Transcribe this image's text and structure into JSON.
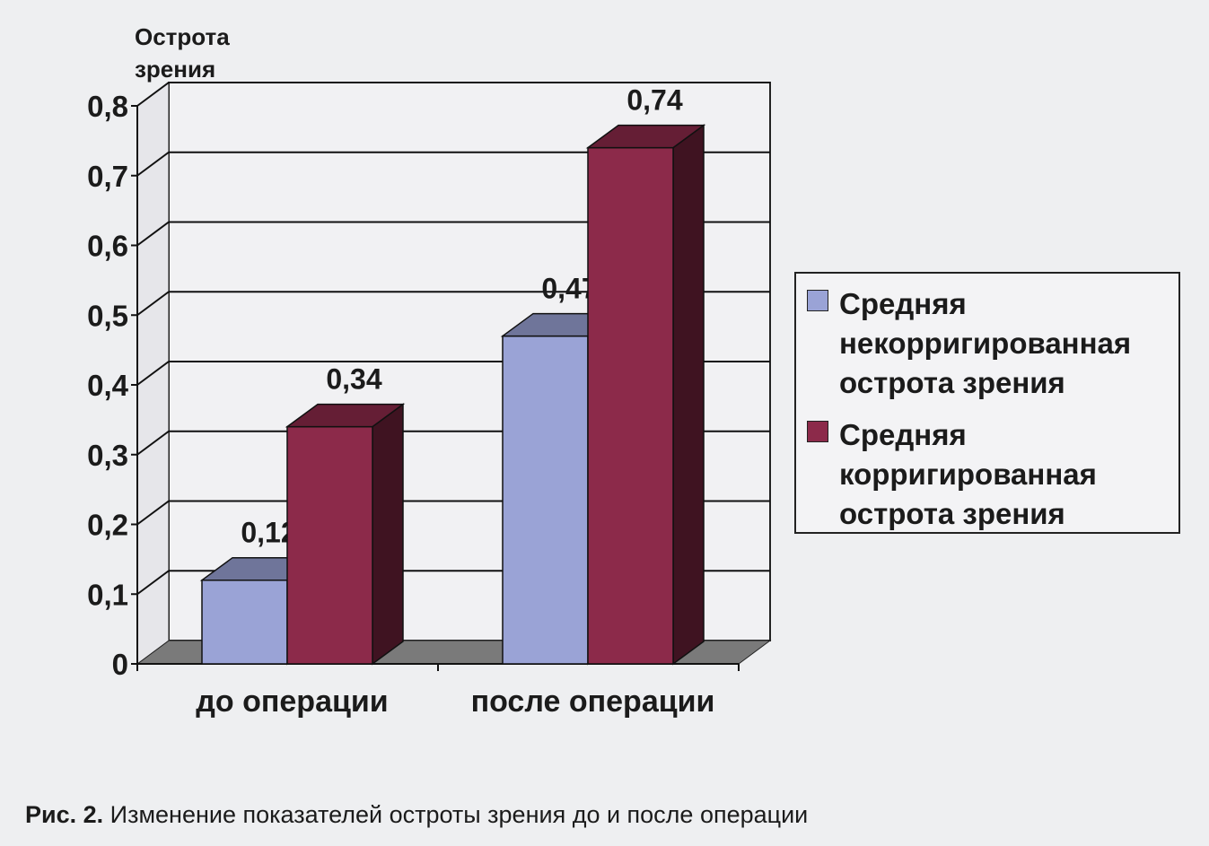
{
  "chart_data": {
    "type": "bar",
    "ylabel": "Острота зрения",
    "ylim": [
      0,
      0.8
    ],
    "yticks": [
      "0",
      "0,1",
      "0,2",
      "0,3",
      "0,4",
      "0,5",
      "0,6",
      "0,7",
      "0,8"
    ],
    "categories": [
      "до операции",
      "после операции"
    ],
    "grid": true,
    "legend_position": "right",
    "series": [
      {
        "name": "Средняя некорригированная острота зрения",
        "values": [
          0.12,
          0.47
        ],
        "labels": [
          "0,12",
          "0,47"
        ],
        "color": "#9aa3d6"
      },
      {
        "name": "Средняя корригированная острота зрения",
        "values": [
          0.34,
          0.74
        ],
        "labels": [
          "0,34",
          "0,74"
        ],
        "color": "#8c2a4a"
      }
    ]
  },
  "legend": {
    "items": [
      {
        "line1": "Средняя",
        "line2": "некорригированная",
        "line3": "острота зрения"
      },
      {
        "line1": "Средняя",
        "line2": "корригированная",
        "line3": "острота зрения"
      }
    ]
  },
  "caption": {
    "prefix": "Рис. 2.",
    "text": "Изменение показателей остроты зрения до и после операции"
  }
}
